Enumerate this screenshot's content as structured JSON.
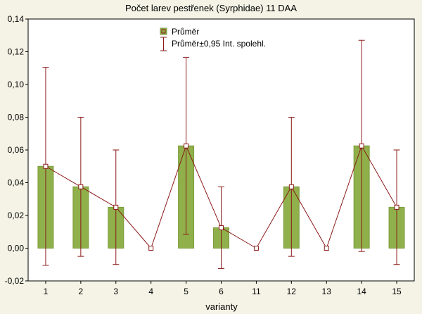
{
  "chart_data": {
    "type": "bar",
    "title": "Počet larev pestřenek (Syrphidae) 11 DAA",
    "xlabel": "varianty",
    "ylabel": "",
    "ylim": [
      -0.02,
      0.14
    ],
    "yticks": [
      -0.02,
      0.0,
      0.02,
      0.04,
      0.06,
      0.08,
      0.1,
      0.12,
      0.14
    ],
    "ytick_labels": [
      "-0,02",
      "0,00",
      "0,02",
      "0,04",
      "0,06",
      "0,08",
      "0,10",
      "0,12",
      "0,14"
    ],
    "categories": [
      "1",
      "2",
      "3",
      "4",
      "5",
      "6",
      "11",
      "12",
      "13",
      "14",
      "15"
    ],
    "series": [
      {
        "name": "Průměr",
        "values": [
          0.05,
          0.0375,
          0.025,
          0.0,
          0.0625,
          0.0125,
          0.0,
          0.0375,
          0.0,
          0.0625,
          0.025
        ]
      },
      {
        "name": "Průměr±0,95 Int. spolehl.",
        "lower": [
          -0.0105,
          -0.005,
          -0.01,
          0.0,
          0.0085,
          -0.0125,
          0.0,
          -0.005,
          0.0,
          -0.002,
          -0.01
        ],
        "upper": [
          0.1105,
          0.08,
          0.06,
          0.0,
          0.1165,
          0.0375,
          0.0,
          0.08,
          0.0,
          0.127,
          0.06
        ]
      }
    ],
    "legend": {
      "position": "top-center",
      "entries": [
        "Průměr",
        "Průměr±0,95 Int. spolehl."
      ]
    },
    "colors": {
      "bar_fill": "#8fb04a",
      "bar_edge": "#7a9a3c",
      "line": "#8b1a1a",
      "plot_bg": "#ffffff",
      "page_bg": "#f4f3e6"
    }
  }
}
